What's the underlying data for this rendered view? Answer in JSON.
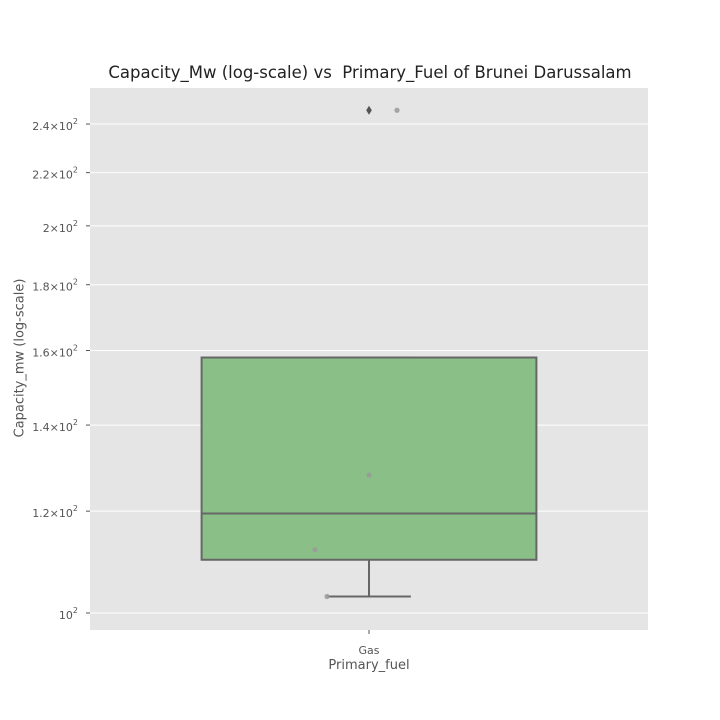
{
  "chart_data": {
    "type": "box",
    "title": "Capacity_Mw (log-scale) vs  Primary_Fuel of Brunei Darussalam",
    "xlabel": "Primary_fuel",
    "ylabel": "Capacity_mw (log-scale)",
    "yscale": "log",
    "ylim": [
      97,
      256
    ],
    "grid": true,
    "categories": [
      "Gas"
    ],
    "yticks": [
      {
        "value": 100,
        "mantissa": "",
        "exponent": "2",
        "base": "10"
      },
      {
        "value": 120,
        "mantissa": "1.2",
        "exponent": "2",
        "base": "10"
      },
      {
        "value": 140,
        "mantissa": "1.4",
        "exponent": "2",
        "base": "10"
      },
      {
        "value": 160,
        "mantissa": "1.6",
        "exponent": "2",
        "base": "10"
      },
      {
        "value": 180,
        "mantissa": "1.8",
        "exponent": "2",
        "base": "10"
      },
      {
        "value": 200,
        "mantissa": "2",
        "exponent": "2",
        "base": "10"
      },
      {
        "value": 220,
        "mantissa": "2.2",
        "exponent": "2",
        "base": "10"
      },
      {
        "value": 240,
        "mantissa": "2.4",
        "exponent": "2",
        "base": "10"
      }
    ],
    "boxes": [
      {
        "category": "Gas",
        "whisker_low": 103,
        "q1": 110,
        "median": 119.5,
        "q3": 158,
        "whisker_high": 158,
        "outliers": [
          246
        ]
      }
    ],
    "points": [
      {
        "category": "Gas",
        "value": 246
      },
      {
        "category": "Gas",
        "value": 128
      },
      {
        "category": "Gas",
        "value": 112
      },
      {
        "category": "Gas",
        "value": 103
      }
    ],
    "colors": {
      "box_fill": "#8ac088",
      "box_edge": "#666666",
      "axes_bg": "#e5e5e5",
      "grid": "#ffffff",
      "point": "#999999"
    }
  }
}
